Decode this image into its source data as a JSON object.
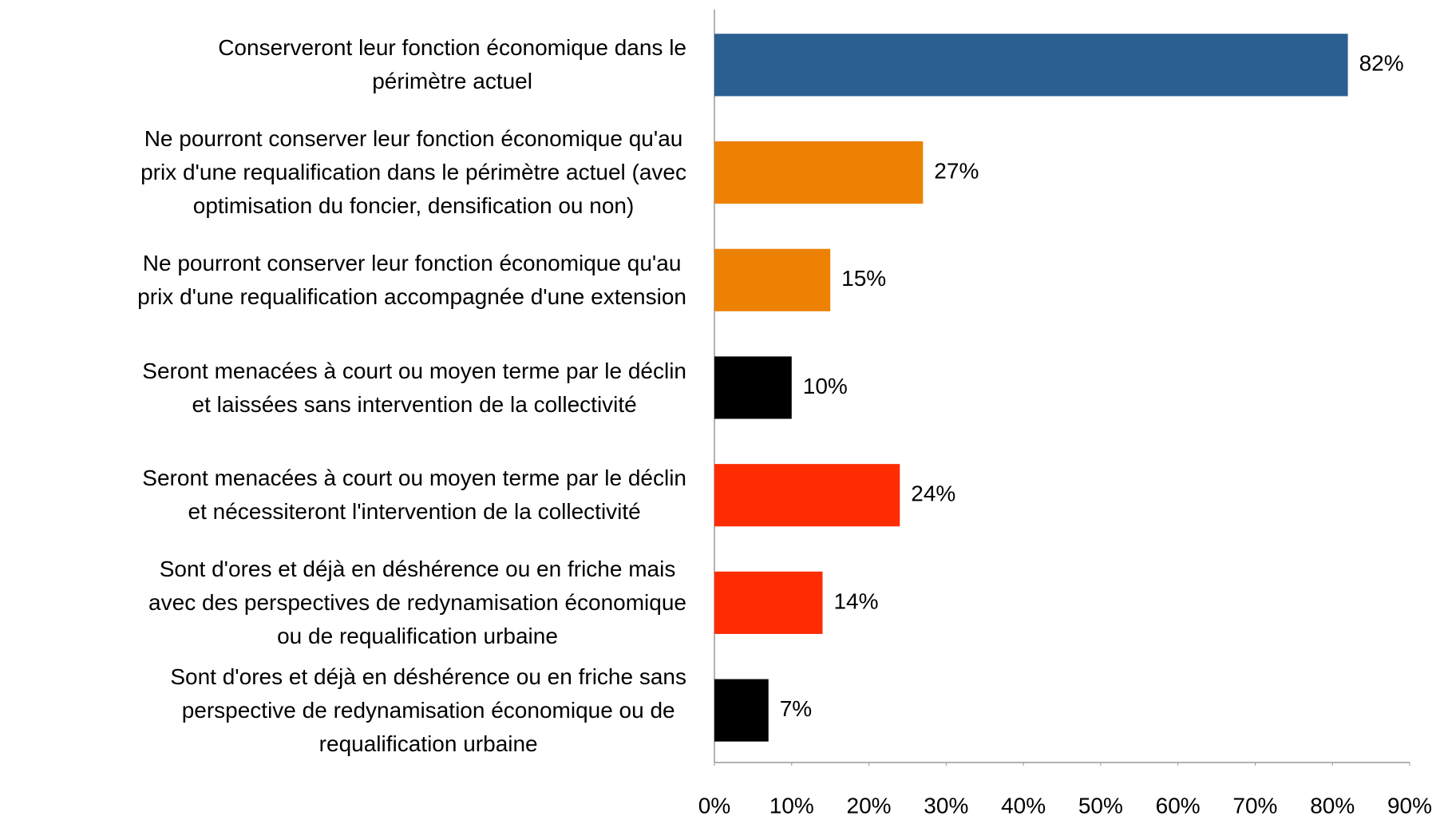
{
  "chart_data": {
    "type": "bar",
    "orientation": "horizontal",
    "categories": [
      "Conserveront leur fonction économique dans le\npérimètre actuel",
      "Ne pourront conserver leur fonction économique qu'au\nprix d'une requalification dans le périmètre actuel (avec\noptimisation du foncier, densification ou non)",
      "Ne pourront conserver leur fonction économique qu'au\nprix d'une requalification accompagnée d'une extension",
      "Seront menacées à court ou moyen terme par le déclin\net laissées sans intervention de la collectivité",
      "Seront menacées à court ou moyen terme par le déclin\net nécessiteront l'intervention de la collectivité",
      "Sont d'ores et déjà en déshérence ou en friche mais\navec des perspectives de redynamisation économique\nou de requalification urbaine",
      "Sont d'ores et déjà en déshérence ou en friche sans\nperspective de redynamisation économique ou de\nrequalification urbaine"
    ],
    "values": [
      82,
      27,
      15,
      10,
      24,
      14,
      7
    ],
    "value_labels": [
      "82%",
      "27%",
      "15%",
      "10%",
      "24%",
      "14%",
      "7%"
    ],
    "colors": [
      "#2b5f91",
      "#ec8104",
      "#ec8104",
      "#000000",
      "#fe2c00",
      "#fe2c00",
      "#000000"
    ],
    "xlim": [
      0,
      90
    ],
    "xticks": [
      {
        "value": 0,
        "label": "0%"
      },
      {
        "value": 10,
        "label": "10%"
      },
      {
        "value": 20,
        "label": "20%"
      },
      {
        "value": 30,
        "label": "30%"
      },
      {
        "value": 40,
        "label": "40%"
      },
      {
        "value": 50,
        "label": "50%"
      },
      {
        "value": 60,
        "label": "60%"
      },
      {
        "value": 70,
        "label": "70%"
      },
      {
        "value": 80,
        "label": "80%"
      },
      {
        "value": 90,
        "label": "90%"
      }
    ],
    "grid": false
  }
}
